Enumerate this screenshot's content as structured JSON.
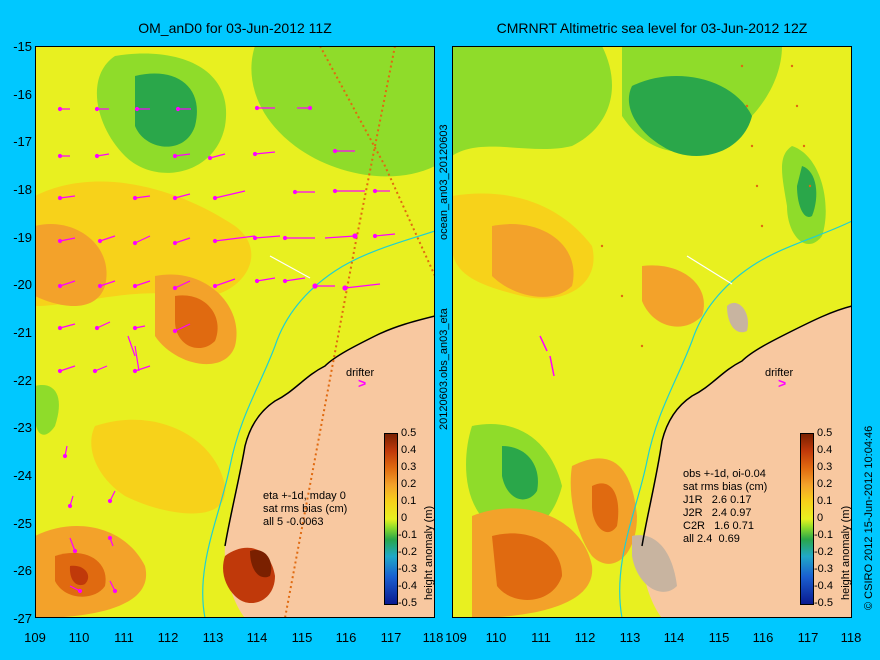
{
  "titles": {
    "left": "OM_anD0 for 03-Jun-2012 11Z",
    "right": "CMRNRT Altimetric sea level  for 03-Jun-2012 12Z"
  },
  "y_axis_ticks": [
    "-15",
    "-16",
    "-17",
    "-18",
    "-19",
    "-20",
    "-21",
    "-22",
    "-23",
    "-24",
    "-25",
    "-26",
    "-27"
  ],
  "x_axis_ticks_left": [
    "109",
    "110",
    "111",
    "112",
    "113",
    "114",
    "115",
    "116",
    "117",
    "118"
  ],
  "x_axis_ticks_right": [
    "109",
    "110",
    "111",
    "112",
    "113",
    "114",
    "115",
    "116",
    "117",
    "118"
  ],
  "side_label_middle": "20120603.obs_an03_eta",
  "side_label_top": "ocean_an03_20120603",
  "side_label_right": "© CSIRO 2012  15-Jun-2012 10:04:46",
  "left_note": "eta +-1d, mday 0\nsat rms bias (cm)\nall 5 -0.0063",
  "right_note": "obs +-1d, oi-0.04\nsat rms bias (cm)\nJ1R   2.6 0.17\nJ2R   2.4 0.97\nC2R   1.6 0.71\nall 2.4  0.69",
  "drifter_label": "drifter",
  "colorbar": {
    "label": "height anomaly (m)",
    "ticks": [
      "0.5",
      "0.4",
      "0.3",
      "0.2",
      "0.1",
      "0",
      "-0.1",
      "-0.2",
      "-0.3",
      "-0.4",
      "-0.5"
    ]
  },
  "colors": {
    "background": "#00c8ff",
    "land": "#f8c8a0",
    "ocean_base": "#e8f020",
    "vector": "#ff00ff"
  }
}
